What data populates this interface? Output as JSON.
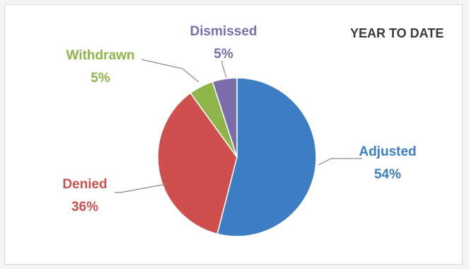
{
  "chart_data": {
    "type": "pie",
    "title": "YEAR TO DATE",
    "slices": [
      {
        "label": "Adjusted",
        "value": 54,
        "display": "54%",
        "color": "#3c7dc4"
      },
      {
        "label": "Denied",
        "value": 36,
        "display": "36%",
        "color": "#cf4f4f"
      },
      {
        "label": "Withdrawn",
        "value": 5,
        "display": "5%",
        "color": "#8fb54a"
      },
      {
        "label": "Dismissed",
        "value": 5,
        "display": "5%",
        "color": "#7b6dab"
      }
    ],
    "start_angle_deg": 0,
    "direction": "clockwise"
  }
}
